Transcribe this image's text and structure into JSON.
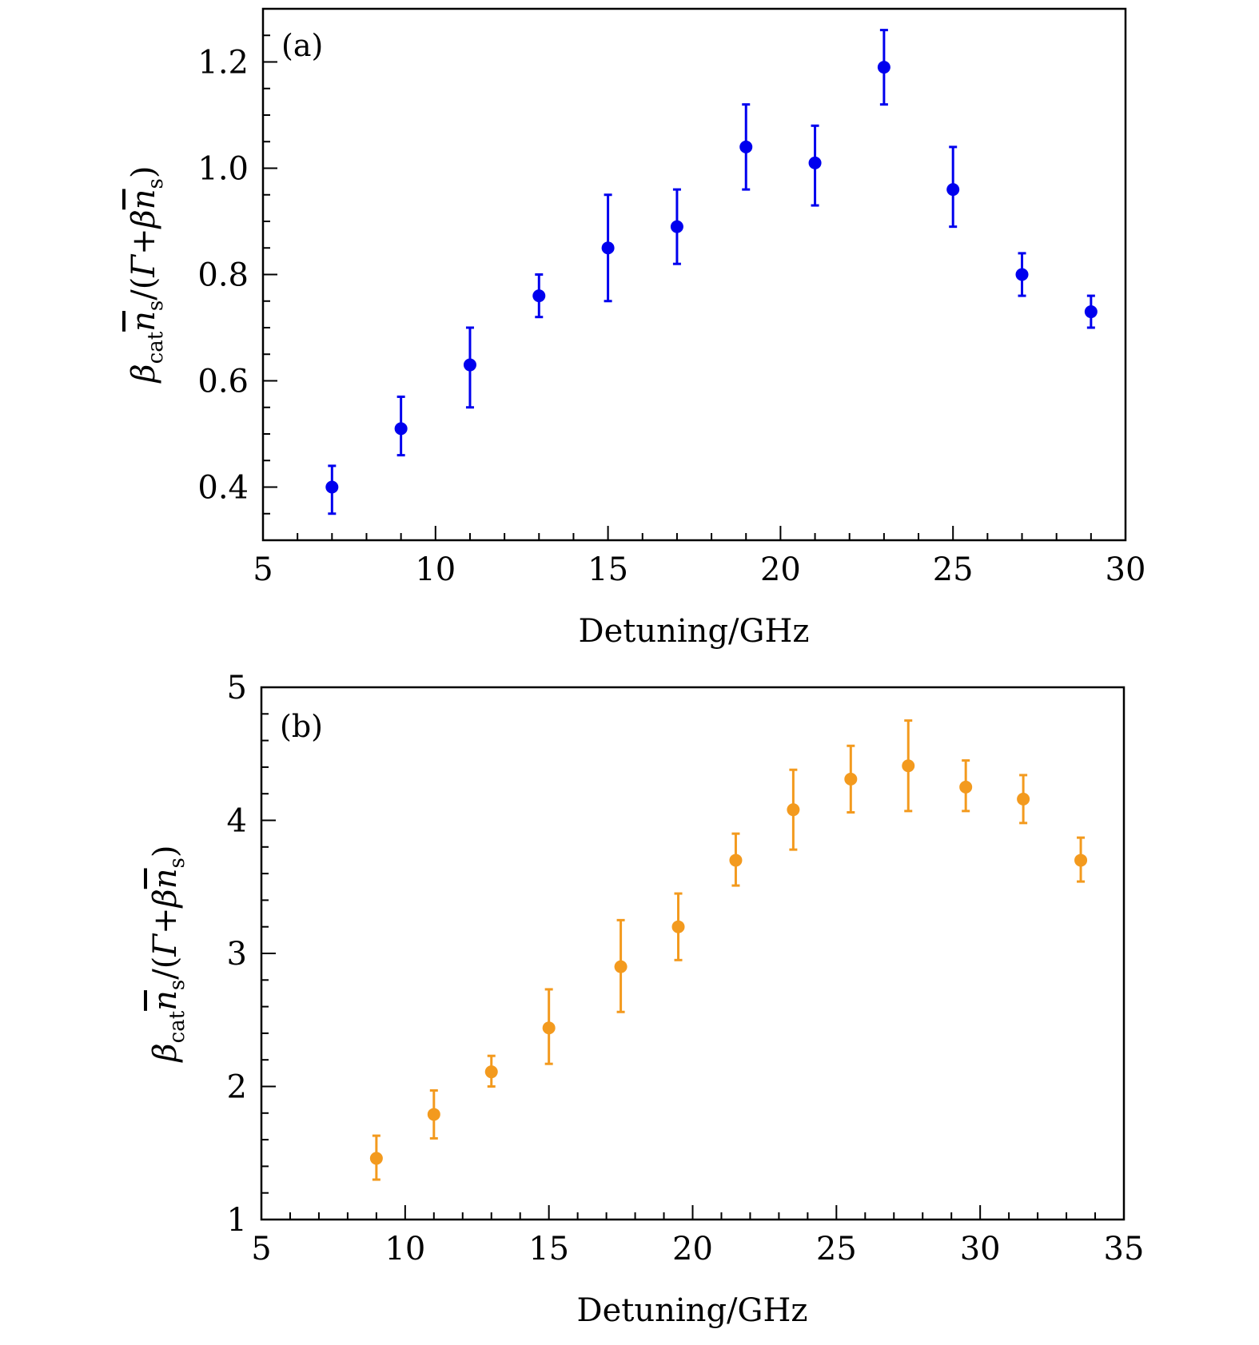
{
  "chart_data": [
    {
      "type": "scatter",
      "panel_label": "(a)",
      "title": "",
      "xlabel": "Detuning/GHz",
      "ylabel": {
        "beta": "β",
        "cat": "cat",
        "n": "n",
        "s": "s",
        "open": "/(",
        "gamma": "Γ",
        "plus": "+",
        "close": ")"
      },
      "xlim": [
        5,
        30
      ],
      "ylim": [
        0.3,
        1.3
      ],
      "xticks": [
        5,
        10,
        15,
        20,
        25,
        30
      ],
      "xtick_labels": [
        "5",
        "10",
        "15",
        "20",
        "25",
        "30"
      ],
      "yticks": [
        0.4,
        0.6,
        0.8,
        1.0,
        1.2
      ],
      "ytick_labels": [
        "0.4",
        "0.6",
        "0.8",
        "1.0",
        "1.2"
      ],
      "x_minor_step": 1,
      "y_minor_step": 0.05,
      "color": "#0000ee",
      "series": [
        {
          "name": "data",
          "x": [
            7.0,
            9.0,
            11.0,
            13.0,
            15.0,
            17.0,
            19.0,
            21.0,
            23.0,
            25.0,
            27.0,
            29.0
          ],
          "y": [
            0.4,
            0.51,
            0.63,
            0.76,
            0.85,
            0.89,
            1.04,
            1.01,
            1.19,
            0.96,
            0.8,
            0.73
          ],
          "err_low": [
            0.35,
            0.46,
            0.55,
            0.72,
            0.75,
            0.82,
            0.96,
            0.93,
            1.12,
            0.89,
            0.76,
            0.7
          ],
          "err_high": [
            0.44,
            0.57,
            0.7,
            0.8,
            0.95,
            0.96,
            1.12,
            1.08,
            1.26,
            1.04,
            0.84,
            0.76
          ]
        }
      ]
    },
    {
      "type": "scatter",
      "panel_label": "(b)",
      "title": "",
      "xlabel": "Detuning/GHz",
      "ylabel": {
        "beta": "β",
        "cat": "cat",
        "n": "n",
        "s": "s",
        "open": "/(",
        "gamma": "Γ",
        "plus": "+",
        "close": ")"
      },
      "xlim": [
        5,
        35
      ],
      "ylim": [
        1,
        5
      ],
      "xticks": [
        5,
        10,
        15,
        20,
        25,
        30,
        35
      ],
      "xtick_labels": [
        "5",
        "10",
        "15",
        "20",
        "25",
        "30",
        "35"
      ],
      "yticks": [
        1,
        2,
        3,
        4,
        5
      ],
      "ytick_labels": [
        "1",
        "2",
        "3",
        "4",
        "5"
      ],
      "x_minor_step": 1,
      "y_minor_step": 0.2,
      "color": "#f39a1e",
      "series": [
        {
          "name": "data",
          "x": [
            9.0,
            11.0,
            13.0,
            15.0,
            17.5,
            19.5,
            21.5,
            23.5,
            25.5,
            27.5,
            29.5,
            31.5,
            33.5
          ],
          "y": [
            1.46,
            1.79,
            2.11,
            2.44,
            2.9,
            3.2,
            3.7,
            4.08,
            4.31,
            4.41,
            4.25,
            4.16,
            3.7
          ],
          "err_low": [
            1.3,
            1.61,
            2.0,
            2.17,
            2.56,
            2.95,
            3.51,
            3.78,
            4.06,
            4.07,
            4.07,
            3.98,
            3.54
          ],
          "err_high": [
            1.63,
            1.97,
            2.23,
            2.73,
            3.25,
            3.45,
            3.9,
            4.38,
            4.56,
            4.75,
            4.45,
            4.34,
            3.87
          ]
        }
      ]
    }
  ]
}
